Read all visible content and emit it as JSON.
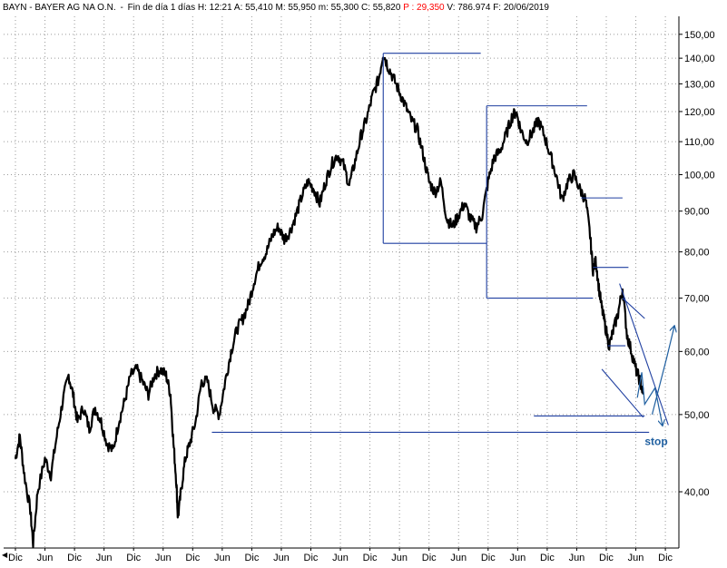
{
  "header": {
    "ticker_name": "BAYN - BAYER AG NA O.N.",
    "period": "Fin de día 1 días",
    "high": "H: 12:21",
    "ask": "A: 55,410",
    "max": "M: 55,950",
    "min": "m: 55,300",
    "close": "C: 55,820",
    "percent": "P : 29,350",
    "volume": "V: 786.974",
    "date": "F: 20/06/2019"
  },
  "chart_data": {
    "type": "line",
    "scale": "log",
    "ylim": [
      34,
      158
    ],
    "y_ticks": [
      {
        "value": 150,
        "label": "150,00"
      },
      {
        "value": 140,
        "label": "140,00"
      },
      {
        "value": 130,
        "label": "130,00"
      },
      {
        "value": 120,
        "label": "120,00"
      },
      {
        "value": 110,
        "label": "110,00"
      },
      {
        "value": 100,
        "label": "100,00"
      },
      {
        "value": 90,
        "label": "90,00"
      },
      {
        "value": 80,
        "label": "80,00"
      },
      {
        "value": 70,
        "label": "70,00"
      },
      {
        "value": 60,
        "label": "60,00"
      },
      {
        "value": 50,
        "label": "50,00"
      },
      {
        "value": 40,
        "label": "40,00"
      }
    ],
    "x_range": [
      0,
      22.8
    ],
    "x_ticks": [
      "Dic",
      "Jun",
      "Dic",
      "Jun",
      "Dic",
      "Jun",
      "Dic",
      "Jun",
      "Dic",
      "Jun",
      "Dic",
      "Jun",
      "Dic",
      "Jun",
      "Dic",
      "Jun",
      "Dic",
      "Jun",
      "Dic",
      "Jun",
      "Dic",
      "Jun",
      "Dic"
    ],
    "grid": true,
    "series": [
      {
        "color": "#000000",
        "points": [
          [
            0.0,
            44
          ],
          [
            0.15,
            47
          ],
          [
            0.3,
            42
          ],
          [
            0.5,
            38
          ],
          [
            0.6,
            34.5
          ],
          [
            0.75,
            40
          ],
          [
            1.0,
            44
          ],
          [
            1.2,
            42
          ],
          [
            1.4,
            47
          ],
          [
            1.6,
            52
          ],
          [
            1.8,
            56
          ],
          [
            1.95,
            53
          ],
          [
            2.1,
            49
          ],
          [
            2.3,
            51
          ],
          [
            2.5,
            48
          ],
          [
            2.7,
            51
          ],
          [
            2.9,
            49
          ],
          [
            3.1,
            46
          ],
          [
            3.3,
            45
          ],
          [
            3.5,
            49
          ],
          [
            3.7,
            52
          ],
          [
            3.9,
            56
          ],
          [
            4.1,
            57
          ],
          [
            4.3,
            55
          ],
          [
            4.5,
            53
          ],
          [
            4.7,
            56
          ],
          [
            4.9,
            57
          ],
          [
            5.1,
            56
          ],
          [
            5.25,
            53
          ],
          [
            5.35,
            46
          ],
          [
            5.45,
            41
          ],
          [
            5.5,
            37
          ],
          [
            5.6,
            40
          ],
          [
            5.75,
            44
          ],
          [
            5.9,
            46
          ],
          [
            6.1,
            49
          ],
          [
            6.3,
            55
          ],
          [
            6.5,
            55
          ],
          [
            6.7,
            51
          ],
          [
            6.9,
            50
          ],
          [
            7.1,
            55
          ],
          [
            7.3,
            60
          ],
          [
            7.5,
            64
          ],
          [
            7.7,
            66
          ],
          [
            7.9,
            69
          ],
          [
            8.1,
            74
          ],
          [
            8.3,
            78
          ],
          [
            8.5,
            80
          ],
          [
            8.7,
            84
          ],
          [
            8.9,
            86
          ],
          [
            9.1,
            83
          ],
          [
            9.3,
            85
          ],
          [
            9.5,
            89
          ],
          [
            9.7,
            94
          ],
          [
            9.9,
            98
          ],
          [
            10.1,
            96
          ],
          [
            10.3,
            92
          ],
          [
            10.5,
            98
          ],
          [
            10.7,
            103
          ],
          [
            10.9,
            106
          ],
          [
            11.1,
            103
          ],
          [
            11.3,
            97
          ],
          [
            11.5,
            104
          ],
          [
            11.7,
            112
          ],
          [
            11.9,
            118
          ],
          [
            12.1,
            126
          ],
          [
            12.3,
            132
          ],
          [
            12.45,
            142
          ],
          [
            12.6,
            137
          ],
          [
            12.8,
            132
          ],
          [
            13.0,
            127
          ],
          [
            13.2,
            122
          ],
          [
            13.4,
            117
          ],
          [
            13.6,
            114
          ],
          [
            13.8,
            106
          ],
          [
            14.0,
            98
          ],
          [
            14.2,
            95
          ],
          [
            14.4,
            98
          ],
          [
            14.6,
            88
          ],
          [
            14.8,
            86
          ],
          [
            15.0,
            89
          ],
          [
            15.2,
            92
          ],
          [
            15.4,
            88
          ],
          [
            15.6,
            86
          ],
          [
            15.8,
            89
          ],
          [
            16.0,
            98
          ],
          [
            16.2,
            105
          ],
          [
            16.4,
            107
          ],
          [
            16.6,
            112
          ],
          [
            16.8,
            118
          ],
          [
            16.95,
            120
          ],
          [
            17.1,
            114
          ],
          [
            17.3,
            110
          ],
          [
            17.5,
            113
          ],
          [
            17.7,
            117
          ],
          [
            17.9,
            112
          ],
          [
            18.1,
            106
          ],
          [
            18.3,
            100
          ],
          [
            18.5,
            93
          ],
          [
            18.7,
            98
          ],
          [
            18.9,
            100
          ],
          [
            19.1,
            96
          ],
          [
            19.3,
            93
          ],
          [
            19.45,
            84
          ],
          [
            19.55,
            76
          ],
          [
            19.65,
            78
          ],
          [
            19.75,
            72
          ],
          [
            19.85,
            68
          ],
          [
            19.95,
            65
          ],
          [
            20.1,
            61
          ],
          [
            20.25,
            64
          ],
          [
            20.4,
            67
          ],
          [
            20.55,
            72
          ],
          [
            20.7,
            63
          ],
          [
            20.85,
            60
          ],
          [
            21.0,
            57
          ],
          [
            21.15,
            55
          ],
          [
            21.25,
            53
          ]
        ]
      }
    ],
    "annotations": {
      "lines": [
        {
          "x1": 12.45,
          "y1": 142,
          "x2": 15.75,
          "y2": 142
        },
        {
          "x1": 12.45,
          "y1": 142,
          "x2": 12.45,
          "y2": 82
        },
        {
          "x1": 12.45,
          "y1": 82,
          "x2": 15.95,
          "y2": 82
        },
        {
          "x1": 15.95,
          "y1": 122,
          "x2": 19.35,
          "y2": 122
        },
        {
          "x1": 15.95,
          "y1": 122,
          "x2": 15.95,
          "y2": 70
        },
        {
          "x1": 15.95,
          "y1": 70,
          "x2": 19.55,
          "y2": 70
        },
        {
          "x1": 19.15,
          "y1": 93.5,
          "x2": 20.55,
          "y2": 93.5
        },
        {
          "x1": 19.55,
          "y1": 76.5,
          "x2": 20.75,
          "y2": 76.5
        },
        {
          "x1": 20.05,
          "y1": 61,
          "x2": 20.65,
          "y2": 61
        },
        {
          "x1": 17.55,
          "y1": 49.8,
          "x2": 21.3,
          "y2": 49.8
        },
        {
          "x1": 6.65,
          "y1": 47.5,
          "x2": 21.45,
          "y2": 47.5
        },
        {
          "x1": 20.45,
          "y1": 73,
          "x2": 22.1,
          "y2": 48.5
        },
        {
          "x1": 19.85,
          "y1": 57,
          "x2": 21.25,
          "y2": 49.6
        },
        {
          "x1": 20.55,
          "y1": 70,
          "x2": 21.3,
          "y2": 66
        }
      ],
      "arrows": [
        {
          "points": [
            [
              21.05,
              52.5
            ],
            [
              21.2,
              56.5
            ],
            [
              21.3,
              51.5
            ],
            [
              21.65,
              54
            ],
            [
              21.9,
              48.5
            ]
          ]
        },
        {
          "points": [
            [
              21.55,
              50
            ],
            [
              22.05,
              59
            ],
            [
              22.3,
              64.5
            ]
          ]
        }
      ],
      "stop_label": {
        "text": "stop",
        "x": 21.3,
        "y": 45.8
      }
    }
  }
}
